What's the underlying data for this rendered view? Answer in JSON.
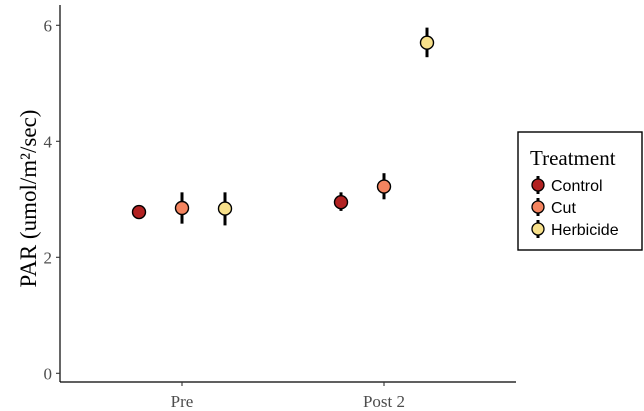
{
  "chart_data": {
    "type": "scatter",
    "title": "",
    "xlabel": "",
    "ylabel": "PAR (umol/m²/sec)",
    "categories": [
      "Pre",
      "Post 2"
    ],
    "ylim": [
      -0.15,
      6.35
    ],
    "yticks": [
      0,
      2,
      4,
      6
    ],
    "grid": false,
    "legend": {
      "title": "Treatment",
      "placement": "right"
    },
    "series": [
      {
        "name": "Control",
        "color": "#b22222",
        "values": [
          2.78,
          2.95
        ],
        "error_low": [
          2.68,
          2.8
        ],
        "error_high": [
          2.88,
          3.12
        ]
      },
      {
        "name": "Cut",
        "color": "#f4845f",
        "values": [
          2.85,
          3.22
        ],
        "error_low": [
          2.58,
          3.0
        ],
        "error_high": [
          3.12,
          3.45
        ]
      },
      {
        "name": "Herbicide",
        "color": "#f7e08a",
        "values": [
          2.84,
          5.7
        ],
        "error_low": [
          2.55,
          5.45
        ],
        "error_high": [
          3.12,
          5.96
        ]
      }
    ]
  }
}
